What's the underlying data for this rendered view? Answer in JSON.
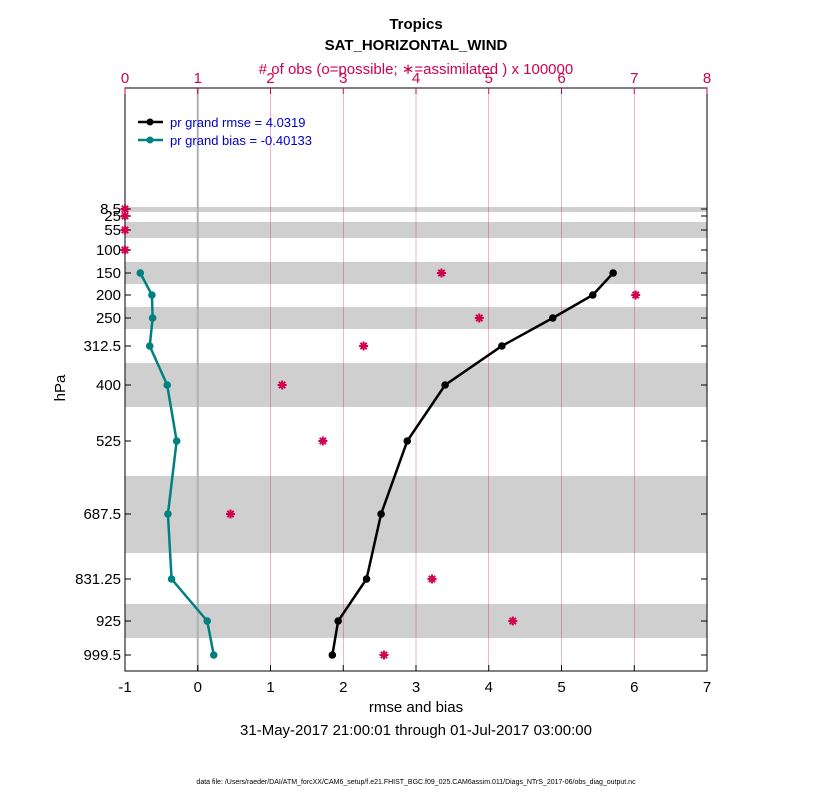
{
  "chart_data": {
    "type": "line",
    "title": "Tropics",
    "subtitle": "SAT_HORIZONTAL_WIND",
    "top_axis_label": "# of obs (o=possible; ∗=assimilated ) x 100000",
    "xlabel": "rmse and bias",
    "ylabel": "hPa",
    "date_range": "31-May-2017 21:00:01 through 01-Jul-2017 03:00:00",
    "footer": "data file: /Users/raeder/DAI/ATM_forcXX/CAM6_setup/f.e21.FHIST_BGC.f09_025.CAM6assim.011/Diags_NTrS_2017-06/obs_diag_output.nc",
    "xlim": [
      -1,
      7
    ],
    "x_ticks": [
      -1,
      0,
      1,
      2,
      3,
      4,
      5,
      6,
      7
    ],
    "top_xlim": [
      0,
      8
    ],
    "top_ticks": [
      0,
      1,
      2,
      3,
      4,
      5,
      6,
      7,
      8
    ],
    "levels": [
      8.5,
      25,
      55,
      100,
      150,
      200,
      250,
      312.5,
      400,
      525,
      687.5,
      831.25,
      925,
      999.5
    ],
    "level_labels": [
      "8.5",
      "25",
      "55",
      "100",
      "150",
      "200",
      "250",
      "312.5",
      "400",
      "525",
      "687.5",
      "831.25",
      "925",
      "999.5"
    ],
    "series": [
      {
        "name": "rmse",
        "legend": "pr grand rmse = 4.0319",
        "color": "#000000",
        "levels": [
          150,
          200,
          250,
          312.5,
          400,
          525,
          687.5,
          831.25,
          925,
          999.5
        ],
        "values": [
          5.71,
          5.43,
          4.88,
          4.18,
          3.4,
          2.88,
          2.52,
          2.32,
          1.93,
          1.85
        ]
      },
      {
        "name": "bias",
        "legend": "pr grand bias = -0.40133",
        "color": "#008080",
        "levels": [
          150,
          200,
          250,
          312.5,
          400,
          525,
          687.5,
          831.25,
          925,
          999.5
        ],
        "values": [
          -0.79,
          -0.63,
          -0.62,
          -0.66,
          -0.42,
          -0.29,
          -0.41,
          -0.36,
          0.13,
          0.22
        ]
      }
    ],
    "obs_assimilated": {
      "color": "#d0004f",
      "levels": [
        8.5,
        25,
        55,
        100,
        150,
        200,
        250,
        312.5,
        400,
        525,
        687.5,
        831.25,
        925,
        999.5
      ],
      "values": [
        0.0,
        0.0,
        0.0,
        0.0,
        4.35,
        7.02,
        4.87,
        3.28,
        2.16,
        2.72,
        1.45,
        4.22,
        5.33,
        3.56
      ]
    }
  }
}
